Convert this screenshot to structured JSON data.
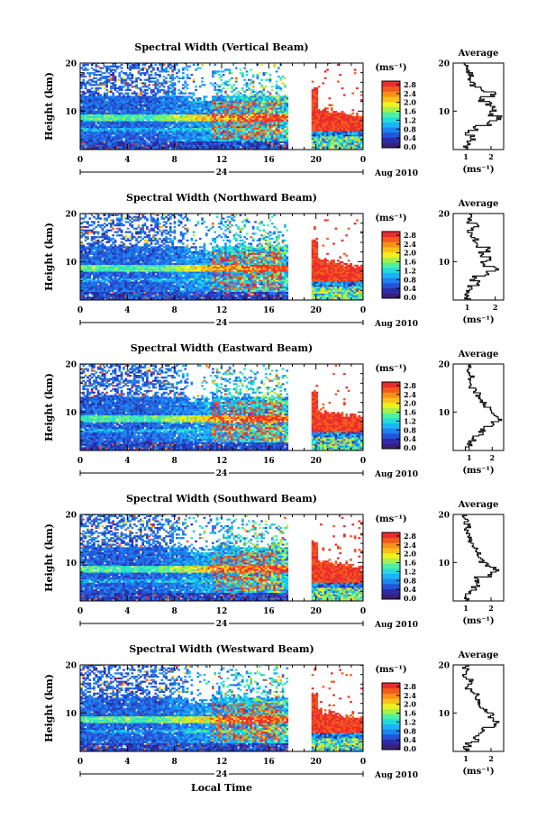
{
  "figure": {
    "xlabel": "Local Time",
    "date_label": "Aug 2010",
    "day_label": "24",
    "colorbar_unit": "(ms⁻¹)",
    "colorbar_ticks": [
      "0.0",
      "0.4",
      "0.8",
      "1.2",
      "1.6",
      "2.0",
      "2.4",
      "2.8"
    ],
    "colorbar_colors": [
      "#3a1f7a",
      "#2c2ca8",
      "#2454d6",
      "#1e84f0",
      "#1ab4f6",
      "#22dcdc",
      "#4ef0a0",
      "#a8f048",
      "#f0f020",
      "#f8c01a",
      "#f8901a",
      "#f25a1e",
      "#ec2c2c"
    ],
    "average_title": "Average",
    "average_xlabel": "(ms⁻¹)"
  },
  "chart_data": [
    {
      "type": "heatmap",
      "title": "Spectral Width (Vertical Beam)",
      "ylabel": "Height (km)",
      "xlim": [
        0,
        24
      ],
      "ylim": [
        2,
        20
      ],
      "x_ticks": [
        "0",
        "4",
        "8",
        "12",
        "16",
        "20",
        "0"
      ],
      "y_ticks": [
        "20",
        "10"
      ],
      "z_range": [
        0,
        3.0
      ],
      "data_gap_hours": [
        17.7,
        19.6
      ],
      "profile": {
        "xlim": [
          0.5,
          2.5
        ],
        "x_ticks": [
          "1",
          "2"
        ],
        "height": [
          2.5,
          3.5,
          4.5,
          5.5,
          6.5,
          7.5,
          8.5,
          9.5,
          10.5,
          11.5,
          12.5,
          13.5,
          14.5,
          15.5,
          16.5,
          17.5,
          18.5,
          19.5
        ],
        "width": [
          1.0,
          1.1,
          1.3,
          1.1,
          1.4,
          1.9,
          2.3,
          2.0,
          2.1,
          1.9,
          1.6,
          2.1,
          1.6,
          1.3,
          1.1,
          1.2,
          1.1,
          1.0
        ]
      }
    },
    {
      "type": "heatmap",
      "title": "Spectral Width (Northward Beam)",
      "ylabel": "Height (km)",
      "xlim": [
        0,
        24
      ],
      "ylim": [
        2,
        20
      ],
      "x_ticks": [
        "0",
        "4",
        "8",
        "12",
        "16",
        "20",
        "0"
      ],
      "y_ticks": [
        "20",
        "10"
      ],
      "z_range": [
        0,
        3.0
      ],
      "data_gap_hours": [
        17.7,
        19.6
      ],
      "profile": {
        "xlim": [
          0.5,
          2.3
        ],
        "x_ticks": [
          "1",
          "2"
        ],
        "height": [
          2.5,
          3.5,
          4.5,
          5.5,
          6.5,
          7.5,
          8.5,
          9.5,
          10.5,
          11.5,
          12.5,
          13.5,
          14.5,
          15.5,
          16.5,
          17.5,
          18.5,
          19.5
        ],
        "width": [
          1.0,
          1.0,
          1.1,
          1.4,
          1.2,
          1.7,
          2.0,
          1.6,
          1.8,
          1.5,
          1.7,
          1.4,
          1.3,
          1.2,
          1.1,
          1.3,
          1.1,
          1.2
        ]
      }
    },
    {
      "type": "heatmap",
      "title": "Spectral Width (Eastward Beam)",
      "ylabel": "Height (km)",
      "xlim": [
        0,
        24
      ],
      "ylim": [
        2,
        20
      ],
      "x_ticks": [
        "0",
        "4",
        "8",
        "12",
        "16",
        "20",
        "0"
      ],
      "y_ticks": [
        "20",
        "10"
      ],
      "z_range": [
        0,
        3.0
      ],
      "data_gap_hours": [
        17.7,
        19.6
      ],
      "profile": {
        "xlim": [
          0.3,
          2.5
        ],
        "x_ticks": [
          "1",
          "2"
        ],
        "height": [
          2.5,
          3.5,
          4.5,
          5.5,
          6.5,
          7.5,
          8.5,
          9.5,
          10.5,
          11.5,
          12.5,
          13.5,
          14.5,
          15.5,
          16.5,
          17.5,
          18.5,
          19.5
        ],
        "width": [
          0.9,
          1.0,
          1.2,
          1.5,
          1.6,
          2.0,
          2.3,
          2.1,
          1.9,
          1.7,
          1.5,
          1.4,
          1.2,
          1.1,
          1.0,
          1.1,
          0.9,
          1.0
        ]
      }
    },
    {
      "type": "heatmap",
      "title": "Spectral Width (Southward Beam)",
      "ylabel": "Height (km)",
      "xlim": [
        0,
        24
      ],
      "ylim": [
        2,
        20
      ],
      "x_ticks": [
        "0",
        "4",
        "8",
        "12",
        "16",
        "20",
        "0"
      ],
      "y_ticks": [
        "20",
        "10"
      ],
      "z_range": [
        0,
        3.0
      ],
      "data_gap_hours": [
        17.7,
        19.6
      ],
      "profile": {
        "xlim": [
          0.5,
          2.5
        ],
        "x_ticks": [
          "1",
          "2"
        ],
        "height": [
          2.5,
          3.5,
          4.5,
          5.5,
          6.5,
          7.5,
          8.5,
          9.5,
          10.5,
          11.5,
          12.5,
          13.5,
          14.5,
          15.5,
          16.5,
          17.5,
          18.5,
          19.5
        ],
        "width": [
          1.0,
          1.1,
          1.3,
          1.5,
          1.4,
          2.0,
          2.2,
          1.9,
          1.6,
          1.5,
          1.4,
          1.3,
          1.2,
          1.1,
          1.0,
          1.1,
          1.0,
          0.9
        ]
      }
    },
    {
      "type": "heatmap",
      "title": "Spectral Width (Westward Beam)",
      "ylabel": "Height (km)",
      "xlim": [
        0,
        24
      ],
      "ylim": [
        2,
        20
      ],
      "x_ticks": [
        "0",
        "4",
        "8",
        "12",
        "16",
        "20",
        "0"
      ],
      "y_ticks": [
        "20",
        "10"
      ],
      "z_range": [
        0,
        3.0
      ],
      "data_gap_hours": [
        17.7,
        19.6
      ],
      "profile": {
        "xlim": [
          0.5,
          2.5
        ],
        "x_ticks": [
          "1",
          "2"
        ],
        "height": [
          2.5,
          3.5,
          4.5,
          5.5,
          6.5,
          7.5,
          8.5,
          9.5,
          10.5,
          11.5,
          12.5,
          13.5,
          14.5,
          15.5,
          16.5,
          17.5,
          18.5,
          19.5
        ],
        "width": [
          1.0,
          1.1,
          1.4,
          1.5,
          1.7,
          2.1,
          2.2,
          2.0,
          1.8,
          1.6,
          1.5,
          1.4,
          1.2,
          1.1,
          1.2,
          1.0,
          1.1,
          1.0
        ]
      }
    }
  ]
}
